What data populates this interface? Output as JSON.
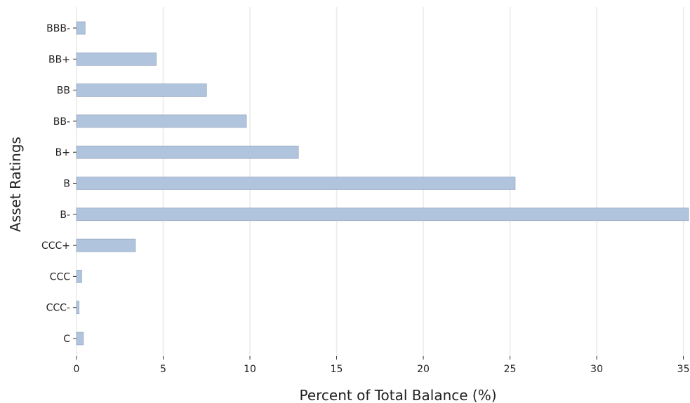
{
  "chart_data": {
    "type": "bar",
    "orientation": "horizontal",
    "title": "",
    "xlabel": "Percent of Total Balance (%)",
    "ylabel": "Asset Ratings",
    "categories": [
      "C",
      "CCC-",
      "CCC",
      "CCC+",
      "B-",
      "B",
      "B+",
      "BB-",
      "BB",
      "BB+",
      "BBB-"
    ],
    "values": [
      0.4,
      0.15,
      0.3,
      3.4,
      35.3,
      25.3,
      12.8,
      9.8,
      7.5,
      4.6,
      0.5
    ],
    "xlim": [
      0,
      35.3
    ],
    "xticks": [
      "0",
      "5",
      "10",
      "15",
      "20",
      "25",
      "30",
      "35"
    ],
    "grid": "vertical",
    "colors": {
      "bar": "#b0c4de",
      "bar_edge": "#8a9bb5",
      "grid": "#ebebeb"
    }
  }
}
